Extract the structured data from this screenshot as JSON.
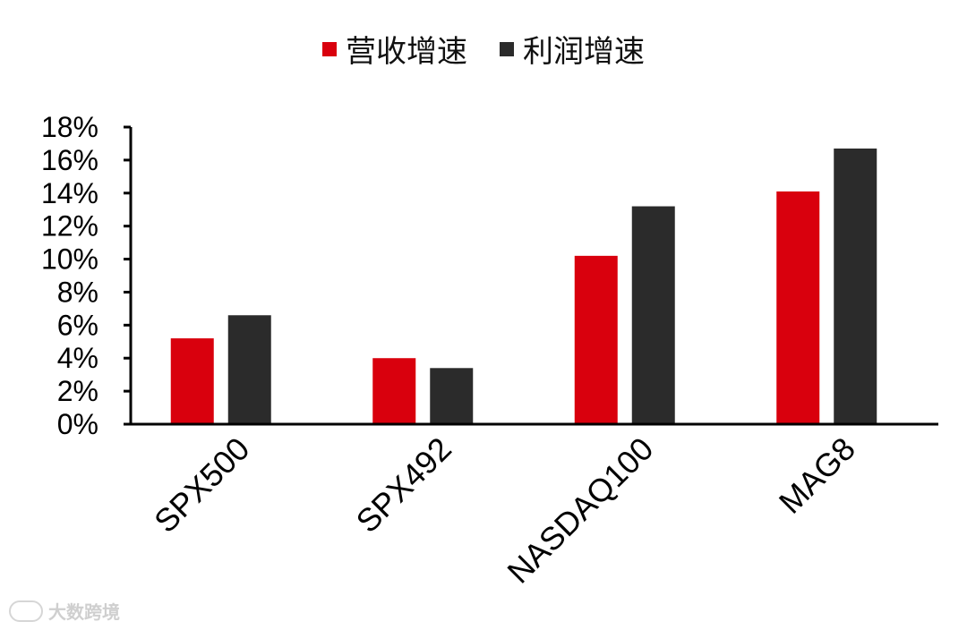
{
  "legend": {
    "revenue_label": "营收增速",
    "profit_label": "利润增速"
  },
  "colors": {
    "revenue": "#d9000d",
    "profit": "#2b2b2b"
  },
  "watermark": {
    "text": "大数跨境"
  },
  "chart_data": {
    "type": "bar",
    "categories": [
      "SPX500",
      "SPX492",
      "NASDAQ100",
      "MAG8"
    ],
    "series": [
      {
        "name": "营收增速",
        "values": [
          5.2,
          4.0,
          10.2,
          14.1
        ]
      },
      {
        "name": "利润增速",
        "values": [
          6.6,
          3.4,
          13.2,
          16.7
        ]
      }
    ],
    "ylim": [
      0,
      18
    ],
    "yticks": [
      "0%",
      "2%",
      "4%",
      "6%",
      "8%",
      "10%",
      "12%",
      "14%",
      "16%",
      "18%"
    ],
    "xlabel": "",
    "ylabel": "",
    "grid": false,
    "legend_position": "top-center"
  }
}
